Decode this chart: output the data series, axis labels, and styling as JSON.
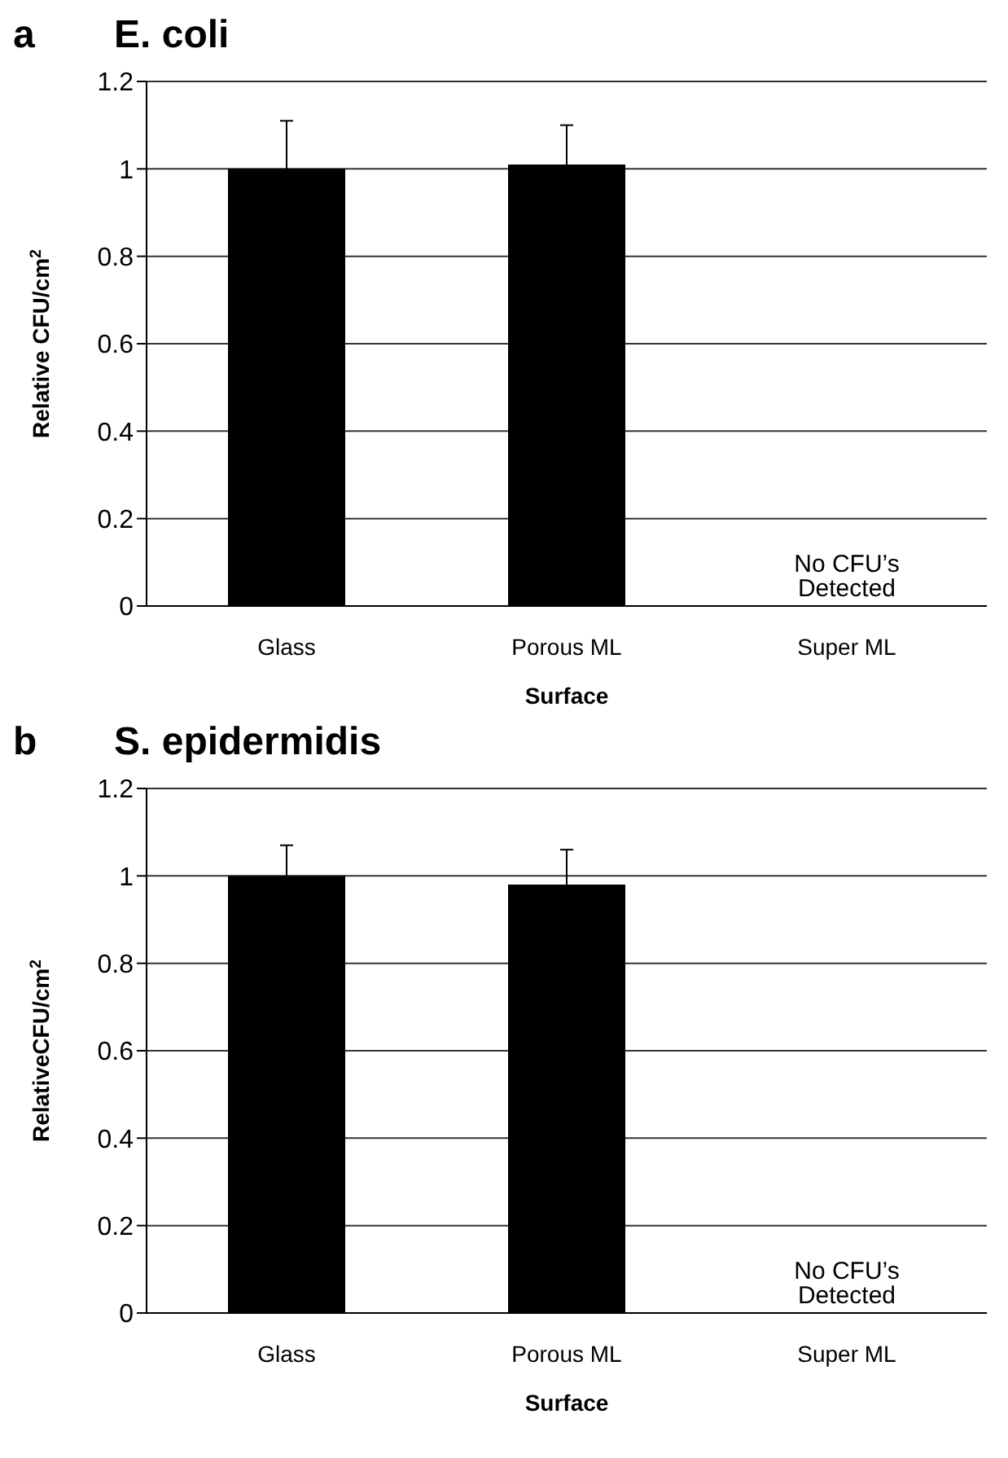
{
  "chart_data": [
    {
      "type": "bar",
      "title": "E. coli",
      "annotations": [
        "a",
        {
          "text": "No CFU’s Detected",
          "x": "Super ML",
          "y": 0
        }
      ],
      "xlabel": "Surface",
      "ylabel": "Relative CFU/cm$^{2}$",
      "categories": [
        "Glass",
        "Porous ML",
        "Super ML"
      ],
      "values": [
        1.0,
        1.01,
        0
      ],
      "errors": [
        0.11,
        0.09,
        null
      ],
      "color": "#000000",
      "ylim": [
        0,
        1.2
      ],
      "yticks": [
        0,
        0.2,
        0.4,
        0.6,
        0.8,
        1,
        1.2
      ],
      "grid": "y",
      "legend": false
    },
    {
      "type": "bar",
      "title": "S. epidermidis",
      "annotations": [
        "b",
        {
          "text": "No CFU’s Detected",
          "x": "Super ML",
          "y": 0
        }
      ],
      "xlabel": "Surface",
      "ylabel": "RelativeCFU/cm$^{2}$",
      "categories": [
        "Glass",
        "Porous ML",
        "Super ML"
      ],
      "values": [
        1.0,
        0.98,
        0
      ],
      "errors": [
        0.07,
        0.08,
        null
      ],
      "color": "#000000",
      "ylim": [
        0,
        1.2
      ],
      "yticks": [
        0,
        0.2,
        0.4,
        0.6,
        0.8,
        1,
        1.2
      ],
      "grid": "y",
      "legend": false
    }
  ]
}
